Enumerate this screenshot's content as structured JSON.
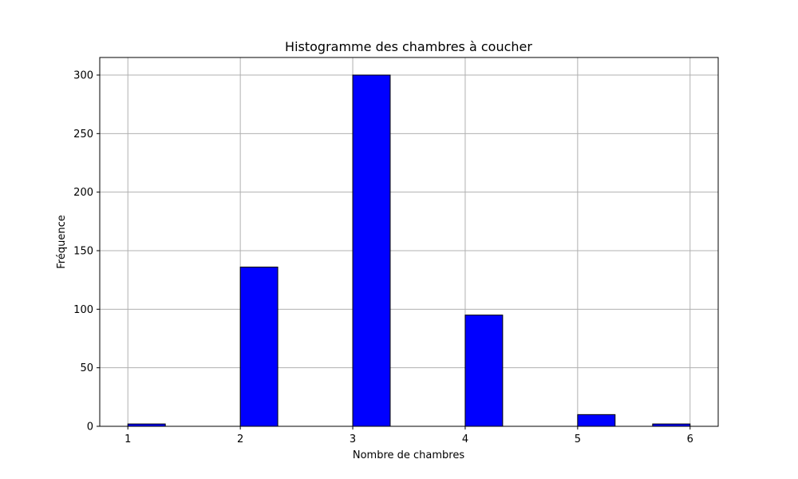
{
  "chart_data": {
    "type": "bar",
    "title": "Histogramme des chambres à coucher",
    "xlabel": "Nombre de chambres",
    "ylabel": "Fréquence",
    "bins": [
      {
        "start": 1.0,
        "end": 1.333,
        "value": 2
      },
      {
        "start": 2.0,
        "end": 2.333,
        "value": 136
      },
      {
        "start": 3.0,
        "end": 3.333,
        "value": 300
      },
      {
        "start": 4.0,
        "end": 4.333,
        "value": 95
      },
      {
        "start": 5.0,
        "end": 5.333,
        "value": 10
      },
      {
        "start": 5.667,
        "end": 6.0,
        "value": 2
      }
    ],
    "xlim": [
      0.75,
      6.25
    ],
    "ylim": [
      0,
      315
    ],
    "xticks": [
      1,
      2,
      3,
      4,
      5,
      6
    ],
    "yticks": [
      0,
      50,
      100,
      150,
      200,
      250,
      300
    ],
    "grid": true,
    "bar_color": "#0000ff",
    "edge_color": "#000000"
  }
}
